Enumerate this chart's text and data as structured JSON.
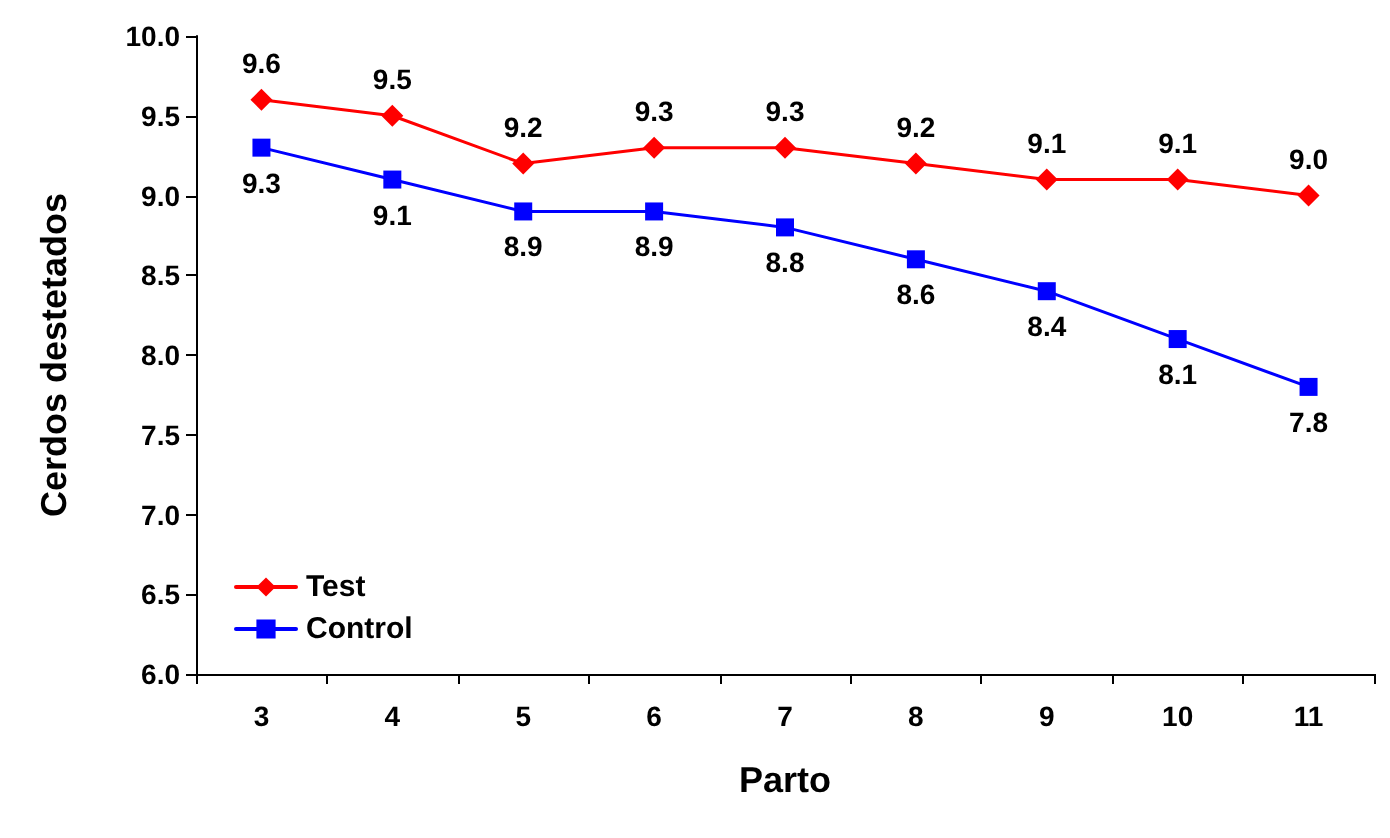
{
  "chart_data": {
    "type": "line",
    "xlabel": "Parto",
    "ylabel": "Cerdos destetados",
    "categories": [
      "3",
      "4",
      "5",
      "6",
      "7",
      "8",
      "9",
      "10",
      "11"
    ],
    "series": [
      {
        "name": "Test",
        "color": "#ff0000",
        "marker": "diamond",
        "values": [
          9.6,
          9.5,
          9.2,
          9.3,
          9.3,
          9.2,
          9.1,
          9.1,
          9.0
        ],
        "value_labels": [
          "9.6",
          "9.5",
          "9.2",
          "9.3",
          "9.3",
          "9.2",
          "9.1",
          "9.1",
          "9.0"
        ]
      },
      {
        "name": "Control",
        "color": "#0000ff",
        "marker": "square",
        "values": [
          9.3,
          9.1,
          8.9,
          8.9,
          8.8,
          8.6,
          8.4,
          8.1,
          7.8
        ],
        "value_labels": [
          "9.3",
          "9.1",
          "8.9",
          "8.9",
          "8.8",
          "8.6",
          "8.4",
          "8.1",
          "7.8"
        ]
      }
    ],
    "ylim": [
      6,
      10
    ],
    "yticks": [
      {
        "value": 6,
        "label": "6.0"
      },
      {
        "value": 6.5,
        "label": "6.5"
      },
      {
        "value": 7,
        "label": "7.0"
      },
      {
        "value": 7.5,
        "label": "7.5"
      },
      {
        "value": 8,
        "label": "8.0"
      },
      {
        "value": 8.5,
        "label": "8.5"
      },
      {
        "value": 9,
        "label": "9.0"
      },
      {
        "value": 9.5,
        "label": "9.5"
      },
      {
        "value": 10,
        "label": "10.0"
      }
    ],
    "grid": false,
    "legend": "bottom left",
    "line_style": "solid"
  }
}
